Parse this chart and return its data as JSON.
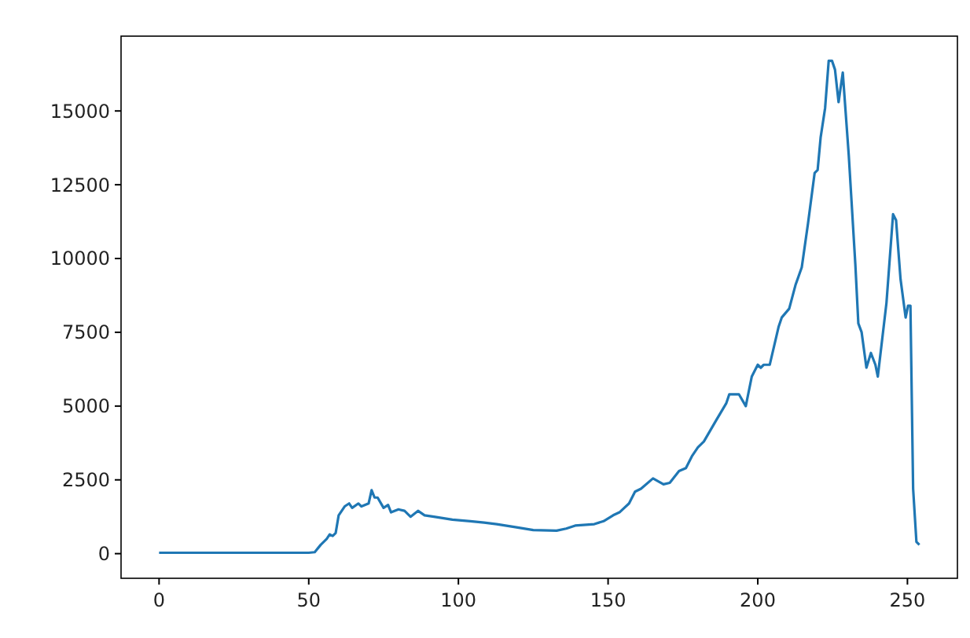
{
  "chart_data": {
    "type": "line",
    "xlim": [
      -12.7,
      266.7
    ],
    "ylim": [
      -835,
      17535
    ],
    "xticks": [
      0,
      50,
      100,
      150,
      200,
      250
    ],
    "yticks": [
      0,
      2500,
      5000,
      7500,
      10000,
      12500,
      15000
    ],
    "line_style": "solid",
    "series": [
      {
        "color": "#1f77b4",
        "x": [
          0,
          10,
          20,
          30,
          40,
          50,
          52,
          54,
          56,
          57,
          58,
          59,
          60,
          62,
          63.5,
          64.5,
          66.6,
          67.6,
          70,
          71,
          72,
          73,
          75,
          76.5,
          77.5,
          80,
          82,
          84,
          86.5,
          88.7,
          91.8,
          98,
          104,
          108.6,
          112.8,
          119,
          125,
          132.8,
          136,
          139,
          145.4,
          148.5,
          151.7,
          153.8,
          157,
          159,
          161,
          165,
          168.5,
          170.6,
          173.7,
          176,
          178,
          180,
          182,
          186,
          189.5,
          190.5,
          193.7,
          196,
          198,
          200,
          201,
          202,
          204,
          207,
          208,
          210.5,
          212.6,
          214.7,
          216.8,
          219,
          220,
          221,
          222.5,
          223.7,
          224.8,
          225.8,
          227,
          228.4,
          230.4,
          232.6,
          233.6,
          234.7,
          236.3,
          237.8,
          239.3,
          240.1,
          243,
          245.2,
          246.2,
          247.7,
          249.4,
          250.2,
          251,
          251.9,
          253,
          254
        ],
        "values": [
          30,
          30,
          30,
          30,
          30,
          30,
          50,
          300,
          500,
          650,
          600,
          700,
          1300,
          1600,
          1700,
          1550,
          1700,
          1600,
          1700,
          2150,
          1900,
          1900,
          1550,
          1650,
          1400,
          1500,
          1450,
          1250,
          1450,
          1300,
          1250,
          1150,
          1100,
          1050,
          1000,
          900,
          800,
          780,
          850,
          950,
          1000,
          1100,
          1300,
          1400,
          1700,
          2100,
          2200,
          2550,
          2350,
          2400,
          2800,
          2900,
          3300,
          3600,
          3800,
          4500,
          5100,
          5400,
          5400,
          5000,
          6000,
          6400,
          6300,
          6400,
          6400,
          7700,
          8000,
          8300,
          9100,
          9700,
          11200,
          12900,
          13000,
          14100,
          15100,
          16700,
          16700,
          16400,
          15300,
          16300,
          13500,
          9800,
          7800,
          7500,
          6300,
          6800,
          6400,
          6000,
          8500,
          11500,
          11300,
          9300,
          8000,
          8400,
          8400,
          2200,
          400,
          300
        ]
      }
    ]
  }
}
